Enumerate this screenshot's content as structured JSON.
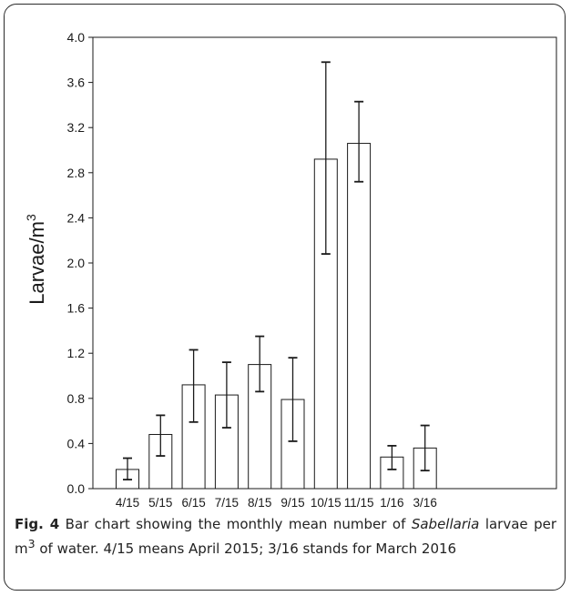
{
  "chart_data": {
    "type": "bar",
    "title": "",
    "xlabel": "",
    "ylabel": "Larvae/m",
    "ylabel_superscript": "3",
    "categories": [
      "4/15",
      "5/15",
      "6/15",
      "7/15",
      "8/15",
      "9/15",
      "10/15",
      "11/15",
      "1/16",
      "3/16"
    ],
    "values": [
      0.17,
      0.48,
      0.92,
      0.83,
      1.1,
      0.79,
      2.92,
      3.06,
      0.28,
      0.36
    ],
    "error_low": [
      0.08,
      0.29,
      0.59,
      0.54,
      0.86,
      0.42,
      2.08,
      2.72,
      0.17,
      0.16
    ],
    "error_high": [
      0.27,
      0.65,
      1.23,
      1.12,
      1.35,
      1.16,
      3.78,
      3.43,
      0.38,
      0.56
    ],
    "ylim": [
      0.0,
      4.0
    ],
    "yticks": [
      "0.0",
      "0.4",
      "0.8",
      "1.2",
      "1.6",
      "2.0",
      "2.4",
      "2.8",
      "3.2",
      "3.6",
      "4.0"
    ],
    "grid": false,
    "bar_fill": "#ffffff",
    "bar_stroke": "#1a1a1a"
  },
  "caption": {
    "label": "Fig. 4",
    "text_before": " Bar chart showing the monthly mean number of ",
    "species": "Sabellaria",
    "text_mid": " larvae per m",
    "superscript": "3",
    "text_after": " of water. 4/15 means April 2015; 3/16 stands for March 2016"
  }
}
